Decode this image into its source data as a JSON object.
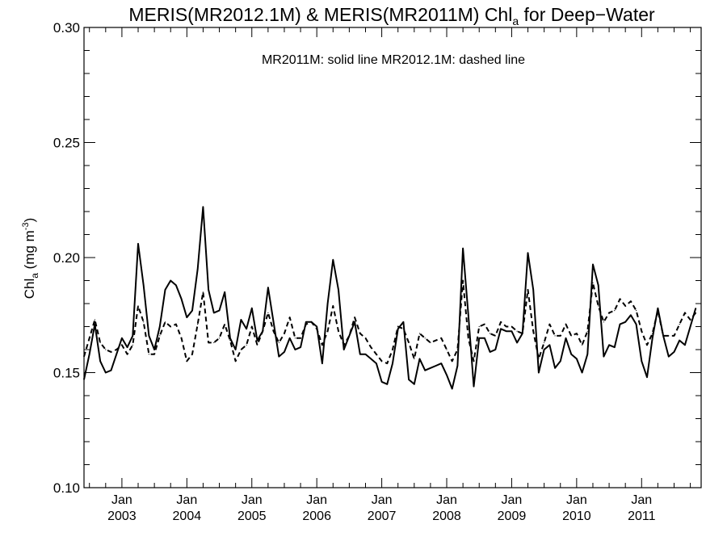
{
  "chart_data": {
    "type": "line",
    "title": {
      "main": "MERIS(MR2012.1M) & MERIS(MR2011M)  Chl",
      "sub": "a",
      "tail": " for Deep−Water"
    },
    "ylabel": {
      "base": "Chl",
      "sub": "a",
      "unit": " (mg m",
      "sup": "-3",
      "close": ")"
    },
    "annotation": "MR2011M: solid line   MR2012.1M: dashed line",
    "ylim": [
      0.1,
      0.3
    ],
    "yticks": [
      {
        "value": 0.1,
        "label": "0.10"
      },
      {
        "value": 0.15,
        "label": "0.15"
      },
      {
        "value": 0.2,
        "label": "0.20"
      },
      {
        "value": 0.25,
        "label": "0.25"
      },
      {
        "value": 0.3,
        "label": "0.30"
      }
    ],
    "y_minor_step": 0.01,
    "xlim": [
      "2002-06",
      "2011-12"
    ],
    "xticks": [
      {
        "date": "2003-01",
        "month": "Jan",
        "year": "2003"
      },
      {
        "date": "2004-01",
        "month": "Jan",
        "year": "2004"
      },
      {
        "date": "2005-01",
        "month": "Jan",
        "year": "2005"
      },
      {
        "date": "2006-01",
        "month": "Jan",
        "year": "2006"
      },
      {
        "date": "2007-01",
        "month": "Jan",
        "year": "2007"
      },
      {
        "date": "2008-01",
        "month": "Jan",
        "year": "2008"
      },
      {
        "date": "2009-01",
        "month": "Jan",
        "year": "2009"
      },
      {
        "date": "2010-01",
        "month": "Jan",
        "year": "2010"
      },
      {
        "date": "2011-01",
        "month": "Jan",
        "year": "2011"
      }
    ],
    "grid": false,
    "series": [
      {
        "name": "MR2011M",
        "style": "solid",
        "color": "#000000",
        "start": "2002-06",
        "values": [
          0.147,
          0.158,
          0.171,
          0.155,
          0.15,
          0.151,
          0.158,
          0.165,
          0.161,
          0.166,
          0.206,
          0.188,
          0.166,
          0.16,
          0.17,
          0.186,
          0.19,
          0.188,
          0.182,
          0.174,
          0.177,
          0.195,
          0.222,
          0.186,
          0.176,
          0.177,
          0.185,
          0.165,
          0.16,
          0.173,
          0.169,
          0.178,
          0.164,
          0.168,
          0.187,
          0.172,
          0.157,
          0.159,
          0.165,
          0.16,
          0.161,
          0.172,
          0.172,
          0.17,
          0.154,
          0.18,
          0.199,
          0.186,
          0.16,
          0.166,
          0.172,
          0.158,
          0.158,
          0.156,
          0.154,
          0.146,
          0.145,
          0.154,
          0.169,
          0.172,
          0.147,
          0.145,
          0.156,
          0.151,
          0.152,
          0.153,
          0.154,
          0.149,
          0.143,
          0.153,
          0.204,
          0.175,
          0.144,
          0.165,
          0.165,
          0.159,
          0.16,
          0.169,
          0.168,
          0.168,
          0.163,
          0.167,
          0.202,
          0.186,
          0.15,
          0.16,
          0.162,
          0.152,
          0.155,
          0.165,
          0.158,
          0.156,
          0.15,
          0.158,
          0.197,
          0.188,
          0.157,
          0.162,
          0.161,
          0.171,
          0.172,
          0.175,
          0.171,
          0.155,
          0.148,
          0.165,
          0.178,
          0.166,
          0.157,
          0.159,
          0.164,
          0.162,
          0.17,
          0.178
        ]
      },
      {
        "name": "MR2012.1M",
        "style": "dashed",
        "color": "#000000",
        "start": "2002-06",
        "values": [
          0.157,
          0.165,
          0.173,
          0.163,
          0.16,
          0.159,
          0.16,
          0.162,
          0.158,
          0.162,
          0.179,
          0.172,
          0.158,
          0.158,
          0.166,
          0.172,
          0.17,
          0.171,
          0.165,
          0.155,
          0.158,
          0.171,
          0.185,
          0.163,
          0.163,
          0.165,
          0.171,
          0.164,
          0.155,
          0.16,
          0.162,
          0.17,
          0.162,
          0.168,
          0.176,
          0.168,
          0.163,
          0.167,
          0.174,
          0.165,
          0.165,
          0.171,
          0.172,
          0.169,
          0.162,
          0.168,
          0.179,
          0.168,
          0.162,
          0.166,
          0.174,
          0.167,
          0.165,
          0.161,
          0.158,
          0.155,
          0.154,
          0.16,
          0.17,
          0.169,
          0.163,
          0.156,
          0.167,
          0.165,
          0.163,
          0.164,
          0.165,
          0.16,
          0.155,
          0.16,
          0.19,
          0.165,
          0.155,
          0.17,
          0.171,
          0.167,
          0.166,
          0.172,
          0.17,
          0.17,
          0.168,
          0.167,
          0.186,
          0.168,
          0.156,
          0.163,
          0.171,
          0.166,
          0.166,
          0.171,
          0.166,
          0.167,
          0.162,
          0.168,
          0.189,
          0.179,
          0.172,
          0.176,
          0.177,
          0.182,
          0.179,
          0.181,
          0.177,
          0.168,
          0.162,
          0.167,
          0.177,
          0.166,
          0.166,
          0.166,
          0.171,
          0.176,
          0.173,
          0.176
        ]
      }
    ]
  }
}
